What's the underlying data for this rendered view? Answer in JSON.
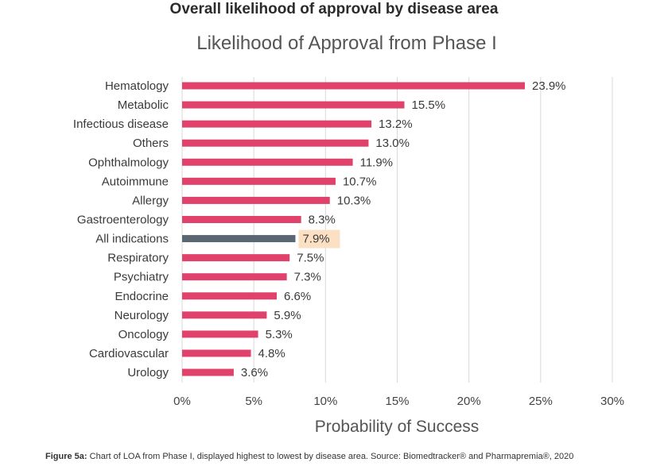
{
  "header": {
    "title": "Overall likelihood of approval by disease area"
  },
  "chart_data": {
    "type": "bar",
    "orientation": "horizontal",
    "title": "Likelihood of Approval from Phase I",
    "xlabel": "Probability of Success",
    "ylabel": "",
    "xlim": [
      0,
      30
    ],
    "x_ticks": [
      0,
      5,
      10,
      15,
      20,
      25,
      30
    ],
    "x_tick_labels": [
      "0%",
      "5%",
      "10%",
      "15%",
      "20%",
      "25%",
      "30%"
    ],
    "grid": "vertical",
    "categories": [
      "Hematology",
      "Metabolic",
      "Infectious disease",
      "Others",
      "Ophthalmology",
      "Autoimmune",
      "Allergy",
      "Gastroenterology",
      "All indications",
      "Respiratory",
      "Psychiatry",
      "Endocrine",
      "Neurology",
      "Oncology",
      "Cardiovascular",
      "Urology"
    ],
    "values": [
      23.9,
      15.5,
      13.2,
      13.0,
      11.9,
      10.7,
      10.3,
      8.3,
      7.9,
      7.5,
      7.3,
      6.6,
      5.9,
      5.3,
      4.8,
      3.6
    ],
    "value_labels": [
      "23.9%",
      "15.5%",
      "13.2%",
      "13.0%",
      "11.9%",
      "10.7%",
      "10.3%",
      "8.3%",
      "7.9%",
      "7.5%",
      "7.3%",
      "6.6%",
      "5.9%",
      "5.3%",
      "4.8%",
      "3.6%"
    ],
    "highlight_category": "All indications",
    "colors": {
      "bar": "#e0426b",
      "highlight_bar": "#5b6673",
      "highlight_label_bg": "#fbe0c4",
      "grid": "#d9d9d9"
    }
  },
  "caption": {
    "label": "Figure 5a:",
    "text": " Chart of LOA from Phase I, displayed highest to lowest by disease area. Source: Biomedtracker® and Pharmapremia®, 2020"
  }
}
